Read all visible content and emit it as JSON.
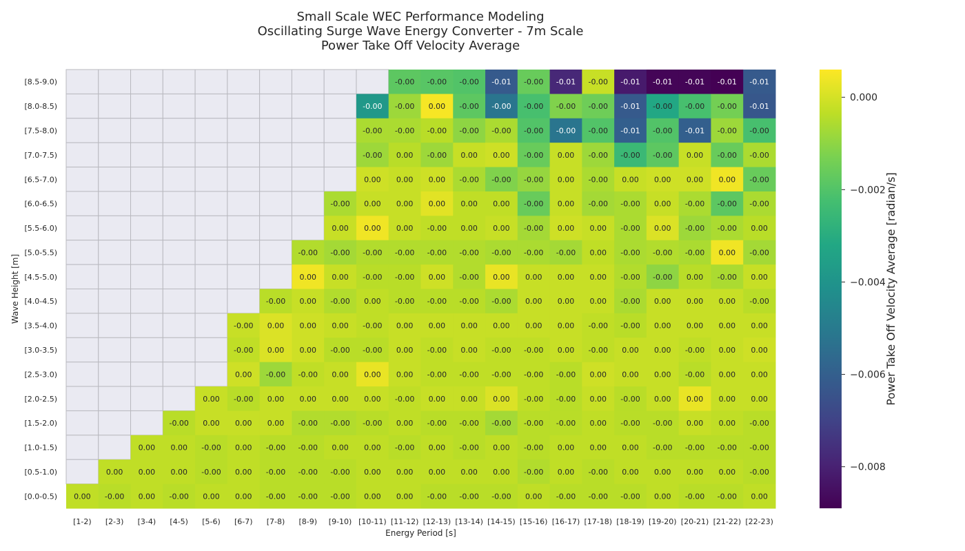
{
  "chart_data": {
    "type": "heatmap",
    "title": [
      "Small Scale WEC Performance Modeling",
      "Oscillating Surge Wave Energy Converter - 7m Scale",
      "Power Take Off Velocity Average"
    ],
    "xlabel": "Energy Period [s]",
    "ylabel": "Wave Height [m]",
    "x_categories": [
      "[1-2)",
      "[2-3)",
      "[3-4)",
      "[4-5)",
      "[5-6)",
      "[6-7)",
      "[7-8)",
      "[8-9)",
      "[9-10)",
      "[10-11)",
      "[11-12)",
      "[12-13)",
      "[13-14)",
      "[14-15)",
      "[15-16)",
      "[16-17)",
      "[17-18)",
      "[18-19)",
      "[19-20)",
      "[20-21)",
      "[21-22)",
      "[22-23)"
    ],
    "y_categories": [
      "[8.5-9.0)",
      "[8.0-8.5)",
      "[7.5-8.0)",
      "[7.0-7.5)",
      "[6.5-7.0)",
      "[6.0-6.5)",
      "[5.5-6.0)",
      "[5.0-5.5)",
      "[4.5-5.0)",
      "[4.0-4.5)",
      "[3.5-4.0)",
      "[3.0-3.5)",
      "[2.5-3.0)",
      "[2.0-2.5)",
      "[1.5-2.0)",
      "[1.0-1.5)",
      "[0.5-1.0)",
      "[0.0-0.5)"
    ],
    "labels": [
      [
        null,
        null,
        null,
        null,
        null,
        null,
        null,
        null,
        null,
        null,
        "-0.00",
        "-0.00",
        "-0.00",
        "-0.01",
        "-0.00",
        "-0.01",
        "-0.00",
        "-0.01",
        "-0.01",
        "-0.01",
        "-0.01",
        "-0.01"
      ],
      [
        null,
        null,
        null,
        null,
        null,
        null,
        null,
        null,
        null,
        "-0.00",
        "-0.00",
        "0.00",
        "-0.00",
        "-0.00",
        "-0.00",
        "-0.00",
        "-0.00",
        "-0.01",
        "-0.00",
        "-0.00",
        "-0.00",
        "-0.01"
      ],
      [
        null,
        null,
        null,
        null,
        null,
        null,
        null,
        null,
        null,
        "-0.00",
        "-0.00",
        "-0.00",
        "-0.00",
        "-0.00",
        "-0.00",
        "-0.00",
        "-0.00",
        "-0.01",
        "-0.00",
        "-0.01",
        "-0.00",
        "-0.00"
      ],
      [
        null,
        null,
        null,
        null,
        null,
        null,
        null,
        null,
        null,
        "-0.00",
        "0.00",
        "-0.00",
        "0.00",
        "0.00",
        "-0.00",
        "0.00",
        "-0.00",
        "-0.00",
        "-0.00",
        "0.00",
        "-0.00",
        "-0.00"
      ],
      [
        null,
        null,
        null,
        null,
        null,
        null,
        null,
        null,
        null,
        "0.00",
        "0.00",
        "0.00",
        "-0.00",
        "-0.00",
        "-0.00",
        "0.00",
        "-0.00",
        "0.00",
        "0.00",
        "0.00",
        "0.00",
        "-0.00"
      ],
      [
        null,
        null,
        null,
        null,
        null,
        null,
        null,
        null,
        "-0.00",
        "0.00",
        "0.00",
        "0.00",
        "0.00",
        "0.00",
        "-0.00",
        "0.00",
        "-0.00",
        "-0.00",
        "0.00",
        "-0.00",
        "-0.00",
        "-0.00"
      ],
      [
        null,
        null,
        null,
        null,
        null,
        null,
        null,
        null,
        "0.00",
        "0.00",
        "0.00",
        "-0.00",
        "0.00",
        "0.00",
        "-0.00",
        "0.00",
        "0.00",
        "-0.00",
        "0.00",
        "-0.00",
        "-0.00",
        "0.00"
      ],
      [
        null,
        null,
        null,
        null,
        null,
        null,
        null,
        "-0.00",
        "-0.00",
        "-0.00",
        "-0.00",
        "-0.00",
        "-0.00",
        "-0.00",
        "-0.00",
        "-0.00",
        "0.00",
        "-0.00",
        "-0.00",
        "-0.00",
        "0.00",
        "-0.00"
      ],
      [
        null,
        null,
        null,
        null,
        null,
        null,
        null,
        "0.00",
        "0.00",
        "-0.00",
        "-0.00",
        "0.00",
        "-0.00",
        "0.00",
        "0.00",
        "0.00",
        "0.00",
        "-0.00",
        "-0.00",
        "0.00",
        "-0.00",
        "0.00"
      ],
      [
        null,
        null,
        null,
        null,
        null,
        null,
        "-0.00",
        "0.00",
        "-0.00",
        "0.00",
        "-0.00",
        "-0.00",
        "-0.00",
        "-0.00",
        "0.00",
        "0.00",
        "0.00",
        "-0.00",
        "0.00",
        "0.00",
        "0.00",
        "-0.00"
      ],
      [
        null,
        null,
        null,
        null,
        null,
        "-0.00",
        "0.00",
        "0.00",
        "0.00",
        "-0.00",
        "0.00",
        "0.00",
        "0.00",
        "0.00",
        "0.00",
        "0.00",
        "-0.00",
        "-0.00",
        "0.00",
        "0.00",
        "0.00",
        "0.00"
      ],
      [
        null,
        null,
        null,
        null,
        null,
        "-0.00",
        "0.00",
        "0.00",
        "-0.00",
        "-0.00",
        "0.00",
        "-0.00",
        "0.00",
        "-0.00",
        "-0.00",
        "0.00",
        "-0.00",
        "0.00",
        "0.00",
        "-0.00",
        "0.00",
        "0.00"
      ],
      [
        null,
        null,
        null,
        null,
        null,
        "0.00",
        "-0.00",
        "-0.00",
        "0.00",
        "0.00",
        "0.00",
        "-0.00",
        "-0.00",
        "-0.00",
        "-0.00",
        "-0.00",
        "0.00",
        "0.00",
        "0.00",
        "-0.00",
        "0.00",
        "0.00"
      ],
      [
        null,
        null,
        null,
        null,
        "0.00",
        "-0.00",
        "0.00",
        "0.00",
        "0.00",
        "0.00",
        "-0.00",
        "0.00",
        "0.00",
        "0.00",
        "-0.00",
        "-0.00",
        "0.00",
        "-0.00",
        "0.00",
        "0.00",
        "0.00",
        "0.00"
      ],
      [
        null,
        null,
        null,
        "-0.00",
        "0.00",
        "0.00",
        "0.00",
        "-0.00",
        "-0.00",
        "-0.00",
        "0.00",
        "-0.00",
        "-0.00",
        "-0.00",
        "-0.00",
        "-0.00",
        "0.00",
        "-0.00",
        "-0.00",
        "0.00",
        "0.00",
        "-0.00"
      ],
      [
        null,
        null,
        "0.00",
        "0.00",
        "-0.00",
        "0.00",
        "-0.00",
        "-0.00",
        "0.00",
        "0.00",
        "-0.00",
        "0.00",
        "-0.00",
        "0.00",
        "-0.00",
        "0.00",
        "0.00",
        "0.00",
        "-0.00",
        "-0.00",
        "-0.00",
        "-0.00"
      ],
      [
        null,
        "0.00",
        "0.00",
        "0.00",
        "-0.00",
        "0.00",
        "-0.00",
        "-0.00",
        "-0.00",
        "0.00",
        "0.00",
        "0.00",
        "0.00",
        "0.00",
        "-0.00",
        "0.00",
        "-0.00",
        "0.00",
        "0.00",
        "0.00",
        "0.00",
        "-0.00"
      ],
      [
        "0.00",
        "-0.00",
        "0.00",
        "-0.00",
        "0.00",
        "0.00",
        "-0.00",
        "-0.00",
        "-0.00",
        "0.00",
        "0.00",
        "-0.00",
        "-0.00",
        "-0.00",
        "0.00",
        "-0.00",
        "-0.00",
        "-0.00",
        "0.00",
        "-0.00",
        "-0.00",
        "0.00"
      ]
    ],
    "values": [
      [
        null,
        null,
        null,
        null,
        null,
        null,
        null,
        null,
        null,
        null,
        -0.0018,
        -0.0019,
        -0.002,
        -0.0062,
        -0.0016,
        -0.0078,
        -0.0002,
        -0.0082,
        -0.0088,
        -0.0088,
        -0.009,
        -0.0062
      ],
      [
        null,
        null,
        null,
        null,
        null,
        null,
        null,
        null,
        null,
        -0.0038,
        -0.0008,
        0.0005,
        -0.0018,
        -0.0052,
        -0.0022,
        -0.0012,
        -0.0015,
        -0.0062,
        -0.0032,
        -0.0022,
        -0.0014,
        -0.0063
      ],
      [
        null,
        null,
        null,
        null,
        null,
        null,
        null,
        null,
        null,
        -0.0006,
        -0.0006,
        -0.0004,
        -0.001,
        -0.0006,
        -0.002,
        -0.0052,
        -0.002,
        -0.006,
        -0.002,
        -0.006,
        -0.0008,
        -0.0022
      ],
      [
        null,
        null,
        null,
        null,
        null,
        null,
        null,
        null,
        null,
        -0.0008,
        -0.0004,
        -0.0008,
        -0.0002,
        -0.0001,
        -0.0016,
        -0.0002,
        -0.0008,
        -0.0025,
        -0.0018,
        -0.0002,
        -0.0016,
        -0.0006
      ],
      [
        null,
        null,
        null,
        null,
        null,
        null,
        null,
        null,
        null,
        -0.0001,
        -0.0002,
        -0.0001,
        -0.0006,
        -0.0012,
        -0.0009,
        -0.0002,
        -0.0006,
        -0.0002,
        -0.0001,
        -0.0001,
        0.0004,
        -0.0016
      ],
      [
        null,
        null,
        null,
        null,
        null,
        null,
        null,
        null,
        -0.0006,
        -0.0002,
        -0.0002,
        0.0002,
        -0.0003,
        -0.0003,
        -0.0016,
        -0.0002,
        -0.0007,
        -0.0006,
        -0.0002,
        -0.0006,
        -0.0018,
        -0.0006
      ],
      [
        null,
        null,
        null,
        null,
        null,
        null,
        null,
        null,
        -0.0002,
        0.0004,
        -0.0002,
        -0.0003,
        -0.0003,
        -0.0002,
        -0.0007,
        -0.0001,
        -0.0002,
        -0.0006,
        0.0001,
        -0.0008,
        -0.0006,
        -0.0004
      ],
      [
        null,
        null,
        null,
        null,
        null,
        null,
        null,
        -0.0005,
        -0.0007,
        -0.0005,
        -0.0005,
        -0.0005,
        -0.0005,
        -0.0006,
        -0.0006,
        -0.0007,
        -0.0003,
        -0.0006,
        -0.0005,
        -0.0006,
        0.0004,
        -0.0007
      ],
      [
        null,
        null,
        null,
        null,
        null,
        null,
        null,
        0.0004,
        -0.0002,
        -0.0004,
        -0.0004,
        -0.0001,
        -0.0005,
        0.0003,
        -0.0002,
        -0.0002,
        -0.0002,
        -0.0005,
        -0.001,
        -0.0004,
        -0.0006,
        -0.0002
      ],
      [
        null,
        null,
        null,
        null,
        null,
        null,
        -0.0004,
        -0.0002,
        -0.0005,
        -0.0003,
        -0.0004,
        -0.0004,
        -0.0004,
        -0.0006,
        -0.0002,
        -0.0002,
        -0.0002,
        -0.0006,
        -0.0002,
        -0.0002,
        -0.0002,
        -0.0004
      ],
      [
        null,
        null,
        null,
        null,
        null,
        -0.0002,
        0.0001,
        -0.0001,
        -0.0002,
        -0.0003,
        -0.0002,
        -0.0002,
        -0.0002,
        -0.0002,
        -0.0002,
        -0.0002,
        -0.0003,
        -0.0004,
        -0.0002,
        -0.0002,
        -0.0002,
        -0.0002
      ],
      [
        null,
        null,
        null,
        null,
        null,
        -0.0003,
        0.0001,
        -0.0001,
        -0.0004,
        -0.0004,
        -0.0002,
        -0.0003,
        -0.0002,
        -0.0003,
        -0.0003,
        -0.0002,
        -0.0003,
        -0.0002,
        -0.0002,
        -0.0003,
        -0.0002,
        -0.0001
      ],
      [
        null,
        null,
        null,
        null,
        null,
        -0.0001,
        -0.0008,
        -0.0003,
        -0.0002,
        0.0003,
        -0.0002,
        -0.0003,
        -0.0003,
        -0.0003,
        -0.0003,
        -0.0004,
        -0.0001,
        -0.0002,
        -0.0002,
        -0.0004,
        -0.0002,
        -0.0002
      ],
      [
        null,
        null,
        null,
        null,
        -0.0002,
        -0.0004,
        -0.0002,
        -0.0002,
        -0.0002,
        -0.0002,
        -0.0003,
        -0.0002,
        -0.0002,
        0.0001,
        -0.0003,
        -0.0004,
        -0.0002,
        -0.0004,
        -0.0002,
        0.0003,
        -0.0002,
        -0.0002
      ],
      [
        null,
        null,
        null,
        -0.0004,
        -0.0002,
        -0.0002,
        -0.0002,
        -0.0005,
        -0.0005,
        -0.0004,
        -0.0003,
        -0.0004,
        -0.0004,
        -0.0007,
        -0.0004,
        -0.0004,
        -0.0003,
        -0.0004,
        -0.0004,
        -0.0002,
        -0.0003,
        -0.0004
      ],
      [
        null,
        null,
        -0.0003,
        -0.0003,
        -0.0004,
        -0.0003,
        -0.0004,
        -0.0004,
        -0.0003,
        -0.0003,
        -0.0004,
        -0.0003,
        -0.0004,
        -0.0003,
        -0.0004,
        -0.0003,
        -0.0003,
        -0.0003,
        -0.0004,
        -0.0004,
        -0.0004,
        -0.0004
      ],
      [
        null,
        -0.0003,
        -0.0003,
        -0.0003,
        -0.0004,
        -0.0003,
        -0.0004,
        -0.0004,
        -0.0004,
        -0.0003,
        -0.0003,
        -0.0003,
        -0.0003,
        -0.0003,
        -0.0005,
        -0.0003,
        -0.0004,
        -0.0003,
        -0.0003,
        -0.0003,
        -0.0003,
        -0.0004
      ],
      [
        -0.0003,
        -0.0004,
        -0.0003,
        -0.0004,
        -0.0003,
        -0.0003,
        -0.0004,
        -0.0004,
        -0.0004,
        -0.0003,
        -0.0003,
        -0.0004,
        -0.0004,
        -0.0004,
        -0.0003,
        -0.0004,
        -0.0004,
        -0.0004,
        -0.0003,
        -0.0004,
        -0.0004,
        -0.0003
      ]
    ],
    "vmin": -0.0089,
    "vmax": 0.0006,
    "colormap": "viridis",
    "missing_color": "#eaeaf2",
    "grid_color": "#b9b9bf",
    "colorbar": {
      "label": "Power Take Off Velocity Average [radian/s]",
      "ticks": [
        0.0,
        -0.002,
        -0.004,
        -0.006,
        -0.008
      ],
      "tick_labels": [
        "0.000",
        "−0.002",
        "−0.004",
        "−0.006",
        "−0.008"
      ]
    }
  }
}
